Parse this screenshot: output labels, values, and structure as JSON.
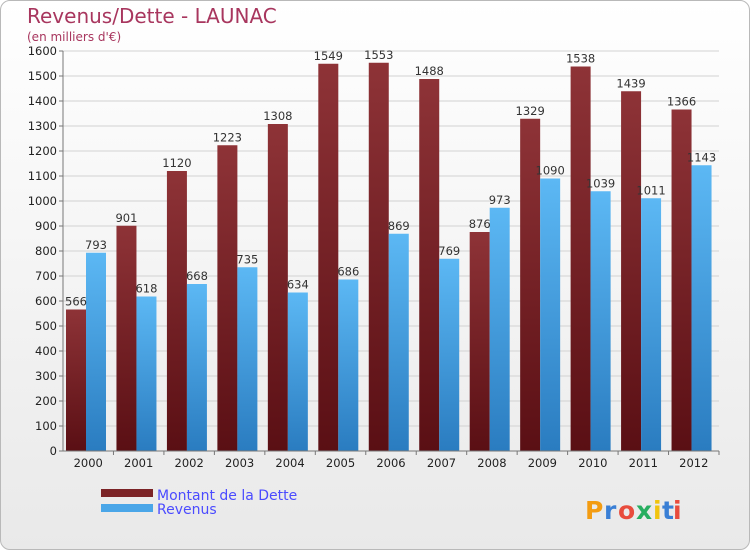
{
  "chart_data": {
    "type": "bar",
    "title": "Revenus/Dette - LAUNAC",
    "subtitle": "(en milliers d'€)",
    "categories": [
      "2000",
      "2001",
      "2002",
      "2003",
      "2004",
      "2005",
      "2006",
      "2007",
      "2008",
      "2009",
      "2010",
      "2011",
      "2012"
    ],
    "series": [
      {
        "name": "Montant de la Dette",
        "color": "#7b2326",
        "values": [
          566,
          901,
          1120,
          1223,
          1308,
          1549,
          1553,
          1488,
          876,
          1329,
          1538,
          1439,
          1366
        ]
      },
      {
        "name": "Revenus",
        "color": "#4aa6e8",
        "values": [
          793,
          618,
          668,
          735,
          634,
          686,
          869,
          769,
          973,
          1090,
          1039,
          1011,
          1143
        ]
      }
    ],
    "ylim": [
      0,
      1600
    ],
    "ytick_step": 100,
    "grid": true,
    "legend": "bottom-left"
  },
  "logo": {
    "text": "Proxiti"
  }
}
